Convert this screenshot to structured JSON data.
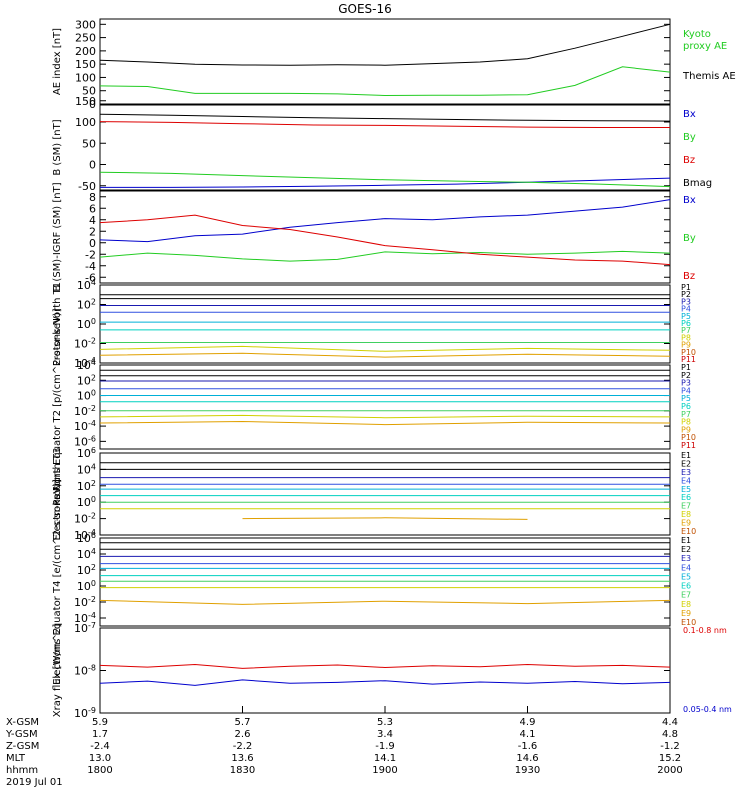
{
  "title": "GOES-16",
  "date_label": "2019 Jul 01",
  "colors": {
    "black": "#000000",
    "green": "#22cc22",
    "blue": "#0000cc",
    "red": "#dd0000",
    "p_palette": [
      "#000000",
      "#000000",
      "#1a1ab0",
      "#3050e0",
      "#00b0d8",
      "#00d0c0",
      "#40d060",
      "#d0d000",
      "#e0a000",
      "#c05000",
      "#cc0000"
    ],
    "e_palette": [
      "#000000",
      "#000000",
      "#1a1ab0",
      "#3050e0",
      "#00b0d8",
      "#00d0c0",
      "#40d060",
      "#d0d000",
      "#e0a000",
      "#c05000"
    ]
  },
  "ephemeris": {
    "labels": [
      "X-GSM",
      "Y-GSM",
      "Z-GSM",
      "MLT",
      "hhmm"
    ],
    "columns": [
      {
        "values": [
          "5.9",
          "1.7",
          "-2.4",
          "13.0",
          "1800"
        ]
      },
      {
        "values": [
          "5.7",
          "2.6",
          "-2.2",
          "13.6",
          "1830"
        ]
      },
      {
        "values": [
          "5.3",
          "3.4",
          "-1.9",
          "14.1",
          "1900"
        ]
      },
      {
        "values": [
          "4.9",
          "4.1",
          "-1.6",
          "14.6",
          "1930"
        ]
      },
      {
        "values": [
          "4.4",
          "4.8",
          "-1.2",
          "15.2",
          "2000"
        ]
      }
    ]
  },
  "chart_data": [
    {
      "type": "line",
      "ylabel": "AE index [nT]",
      "scale": "linear",
      "ylim": [
        0,
        320
      ],
      "ticks": [
        "300",
        "250",
        "200",
        "150",
        "100",
        "50",
        "0"
      ],
      "tick_values": [
        300,
        250,
        200,
        150,
        100,
        50,
        0
      ],
      "x": [
        1800,
        1810,
        1820,
        1830,
        1840,
        1850,
        1900,
        1910,
        1920,
        1930,
        1940,
        1950,
        2000
      ],
      "series": [
        {
          "name": "Kyoto proxy AE",
          "color": "green",
          "legend_lines": [
            "Kyoto",
            "proxy AE"
          ],
          "values": [
            68,
            66,
            40,
            40,
            40,
            38,
            32,
            33,
            33,
            35,
            70,
            140,
            120
          ]
        },
        {
          "name": "Themis AE",
          "color": "black",
          "legend_lines": [
            "Themis AE"
          ],
          "values": [
            165,
            158,
            150,
            147,
            146,
            148,
            146,
            152,
            158,
            170,
            210,
            255,
            300
          ]
        }
      ]
    },
    {
      "type": "line",
      "ylabel": "B (SM) [nT]",
      "scale": "linear",
      "ylim": [
        -60,
        140
      ],
      "ticks": [
        "150",
        "100",
        "50",
        "0",
        "-50"
      ],
      "tick_values": [
        150,
        100,
        50,
        0,
        -50
      ],
      "x": [
        1800,
        1815,
        1830,
        1845,
        1900,
        1915,
        1930,
        1945,
        2000
      ],
      "series": [
        {
          "name": "Bx",
          "color": "blue",
          "values": [
            -54,
            -54,
            -53,
            -51,
            -49,
            -46,
            -42,
            -37,
            -32
          ]
        },
        {
          "name": "By",
          "color": "green",
          "values": [
            -18,
            -21,
            -26,
            -31,
            -36,
            -39,
            -42,
            -46,
            -52
          ]
        },
        {
          "name": "Bz",
          "color": "red",
          "values": [
            101,
            99,
            96,
            93,
            92,
            90,
            88,
            87,
            87
          ]
        },
        {
          "name": "Bmag",
          "color": "black",
          "values": [
            118,
            116,
            113,
            110,
            108,
            106,
            104,
            103,
            102
          ]
        }
      ]
    },
    {
      "type": "line",
      "ylabel": "B (SM)-IGRF (SM) [nT]",
      "scale": "linear",
      "ylim": [
        -7,
        9
      ],
      "ticks": [
        "8",
        "6",
        "4",
        "2",
        "0",
        "-2",
        "-4",
        "-6"
      ],
      "tick_values": [
        8,
        6,
        4,
        2,
        0,
        -2,
        -4,
        -6
      ],
      "x": [
        1800,
        1810,
        1820,
        1830,
        1840,
        1850,
        1900,
        1910,
        1920,
        1930,
        1940,
        1950,
        2000
      ],
      "series": [
        {
          "name": "Bx",
          "color": "blue",
          "values": [
            0.5,
            0.2,
            1.2,
            1.5,
            2.7,
            3.5,
            4.2,
            4.0,
            4.5,
            4.8,
            5.5,
            6.2,
            7.5
          ]
        },
        {
          "name": "By",
          "color": "green",
          "values": [
            -2.5,
            -1.8,
            -2.2,
            -2.8,
            -3.2,
            -2.9,
            -1.6,
            -1.9,
            -1.7,
            -2.0,
            -1.8,
            -1.5,
            -1.8
          ]
        },
        {
          "name": "Bz",
          "color": "red",
          "values": [
            3.5,
            4.0,
            4.8,
            3.0,
            2.3,
            1.0,
            -0.5,
            -1.2,
            -2.0,
            -2.5,
            -3.0,
            -3.2,
            -3.8
          ]
        }
      ]
    },
    {
      "type": "line",
      "ylabel": "Protons North T1",
      "scale": "log",
      "ylim": [
        -4,
        4
      ],
      "ticks": [
        "10^4",
        "10^2",
        "10^0",
        "10^-2",
        "10^-4"
      ],
      "tick_values": [
        4,
        2,
        0,
        -2,
        -4
      ],
      "x": [
        1800,
        1830,
        1900,
        1930,
        2000
      ],
      "series": [
        {
          "name": "P1",
          "values": [
            3.0,
            3.0,
            3.0,
            3.0,
            3.0
          ]
        },
        {
          "name": "P2",
          "values": [
            2.6,
            2.6,
            2.6,
            2.6,
            2.6
          ]
        },
        {
          "name": "P3",
          "values": [
            1.9,
            1.9,
            1.9,
            1.9,
            1.9
          ]
        },
        {
          "name": "P4",
          "values": [
            1.2,
            1.2,
            1.2,
            1.2,
            1.2
          ]
        },
        {
          "name": "P5",
          "values": [
            0.2,
            0.2,
            0.2,
            0.2,
            0.2
          ]
        },
        {
          "name": "P6",
          "values": [
            -0.6,
            -0.6,
            -0.6,
            -0.6,
            -0.6
          ]
        },
        {
          "name": "P7",
          "values": [
            -1.9,
            -1.9,
            -1.9,
            -1.9,
            -1.9
          ]
        },
        {
          "name": "P8",
          "values": [
            -2.6,
            -2.3,
            -2.8,
            -2.5,
            -2.7
          ]
        },
        {
          "name": "P9",
          "values": [
            -3.2,
            -3.0,
            -3.4,
            -3.1,
            -3.3
          ]
        },
        {
          "name": "P10",
          "values": [
            null,
            null,
            null,
            null,
            null
          ]
        },
        {
          "name": "P11",
          "values": [
            null,
            null,
            null,
            null,
            null
          ]
        }
      ]
    },
    {
      "type": "line",
      "ylabel": "Protons Equator T2 [p/(cm^2-s-sr-keV)]",
      "scale": "log",
      "ylim": [
        -7,
        4
      ],
      "ticks": [
        "10^4",
        "10^2",
        "10^0",
        "10^-2",
        "10^-4",
        "10^-6"
      ],
      "tick_values": [
        4,
        2,
        0,
        -2,
        -4,
        -6
      ],
      "x": [
        1800,
        1830,
        1900,
        1930,
        2000
      ],
      "series": [
        {
          "name": "P1",
          "values": [
            3.3,
            3.3,
            3.3,
            3.3,
            3.3
          ]
        },
        {
          "name": "P2",
          "values": [
            2.6,
            2.6,
            2.6,
            2.6,
            2.6
          ]
        },
        {
          "name": "P3",
          "values": [
            1.9,
            1.9,
            1.9,
            1.9,
            1.9
          ]
        },
        {
          "name": "P4",
          "values": [
            0.9,
            0.9,
            0.9,
            0.9,
            0.9
          ]
        },
        {
          "name": "P5",
          "values": [
            0.0,
            0.0,
            0.0,
            0.0,
            0.0
          ]
        },
        {
          "name": "P6",
          "values": [
            -0.8,
            -0.8,
            -0.8,
            -0.8,
            -0.8
          ]
        },
        {
          "name": "P7",
          "values": [
            -2.0,
            -2.0,
            -2.0,
            -2.0,
            -2.0
          ]
        },
        {
          "name": "P8",
          "values": [
            -2.8,
            -2.6,
            -2.9,
            -2.7,
            -2.8
          ]
        },
        {
          "name": "P9",
          "values": [
            -3.6,
            -3.4,
            -3.8,
            -3.5,
            -3.6
          ]
        },
        {
          "name": "P10",
          "values": [
            null,
            null,
            null,
            null,
            null
          ]
        },
        {
          "name": "P11",
          "values": [
            null,
            null,
            null,
            null,
            null
          ]
        }
      ]
    },
    {
      "type": "line",
      "ylabel": "Electrons North T3",
      "scale": "log",
      "ylim": [
        -4,
        6
      ],
      "ticks": [
        "10^6",
        "10^4",
        "10^2",
        "10^0",
        "10^-2",
        "10^-4"
      ],
      "tick_values": [
        6,
        4,
        2,
        0,
        -2,
        -4
      ],
      "x": [
        1800,
        1830,
        1900,
        1930,
        2000
      ],
      "series": [
        {
          "name": "E1",
          "values": [
            4.8,
            4.8,
            4.8,
            4.8,
            4.8
          ]
        },
        {
          "name": "E2",
          "values": [
            4.0,
            4.0,
            4.0,
            4.0,
            4.0
          ]
        },
        {
          "name": "E3",
          "values": [
            3.0,
            3.0,
            3.0,
            3.0,
            3.0
          ]
        },
        {
          "name": "E4",
          "values": [
            2.2,
            2.2,
            2.2,
            2.2,
            2.2
          ]
        },
        {
          "name": "E5",
          "values": [
            1.6,
            1.6,
            1.6,
            1.6,
            1.6
          ]
        },
        {
          "name": "E6",
          "values": [
            0.8,
            0.8,
            0.8,
            0.8,
            0.8
          ]
        },
        {
          "name": "E7",
          "values": [
            0.0,
            0.0,
            0.0,
            0.0,
            0.0
          ]
        },
        {
          "name": "E8",
          "values": [
            -0.8,
            -0.8,
            -0.8,
            -0.8,
            -0.8
          ]
        },
        {
          "name": "E9",
          "values": [
            null,
            -2.0,
            -1.9,
            -2.1,
            null
          ]
        },
        {
          "name": "E10",
          "values": [
            null,
            null,
            null,
            null,
            null
          ]
        }
      ]
    },
    {
      "type": "line",
      "ylabel": "Electrons Equator T4 [e/(cm^2-s-sr-keV)]",
      "scale": "log",
      "ylim": [
        -5,
        6
      ],
      "ticks": [
        "10^6",
        "10^4",
        "10^2",
        "10^0",
        "10^-2",
        "10^-4"
      ],
      "tick_values": [
        6,
        4,
        2,
        0,
        -2,
        -4
      ],
      "x": [
        1800,
        1830,
        1900,
        1930,
        2000
      ],
      "series": [
        {
          "name": "E1",
          "values": [
            5.4,
            5.4,
            5.4,
            5.4,
            5.4
          ]
        },
        {
          "name": "E2",
          "values": [
            4.6,
            4.6,
            4.6,
            4.6,
            4.6
          ]
        },
        {
          "name": "E3",
          "values": [
            3.7,
            3.7,
            3.7,
            3.7,
            3.7
          ]
        },
        {
          "name": "E4",
          "values": [
            2.8,
            2.8,
            2.8,
            2.8,
            2.8
          ]
        },
        {
          "name": "E5",
          "values": [
            2.2,
            2.2,
            2.2,
            2.2,
            2.2
          ]
        },
        {
          "name": "E6",
          "values": [
            1.3,
            1.3,
            1.3,
            1.3,
            1.3
          ]
        },
        {
          "name": "E7",
          "values": [
            0.6,
            0.6,
            0.6,
            0.6,
            0.6
          ]
        },
        {
          "name": "E8",
          "values": [
            -0.2,
            -0.2,
            -0.2,
            -0.2,
            -0.2
          ]
        },
        {
          "name": "E9",
          "values": [
            -1.8,
            -2.3,
            -1.9,
            -2.2,
            -1.8
          ]
        },
        {
          "name": "E10",
          "values": [
            null,
            null,
            null,
            null,
            null
          ]
        }
      ]
    },
    {
      "type": "line",
      "ylabel": "Xray flux [W/m^2]",
      "scale": "log",
      "ylim": [
        -9,
        -7
      ],
      "ticks": [
        "10^-7",
        "10^-8",
        "10^-9"
      ],
      "tick_values": [
        -7,
        -8,
        -9
      ],
      "x": [
        1800,
        1810,
        1820,
        1830,
        1840,
        1850,
        1900,
        1910,
        1920,
        1930,
        1940,
        1950,
        2000
      ],
      "series": [
        {
          "name": "0.1-0.8 nm",
          "color": "red",
          "values": [
            -7.88,
            -7.92,
            -7.86,
            -7.95,
            -7.9,
            -7.87,
            -7.93,
            -7.89,
            -7.91,
            -7.86,
            -7.9,
            -7.88,
            -7.92
          ]
        },
        {
          "name": "0.05-0.4 nm",
          "color": "blue",
          "values": [
            -8.3,
            -8.25,
            -8.35,
            -8.22,
            -8.3,
            -8.28,
            -8.24,
            -8.32,
            -8.27,
            -8.3,
            -8.26,
            -8.31,
            -8.28
          ]
        }
      ]
    }
  ]
}
